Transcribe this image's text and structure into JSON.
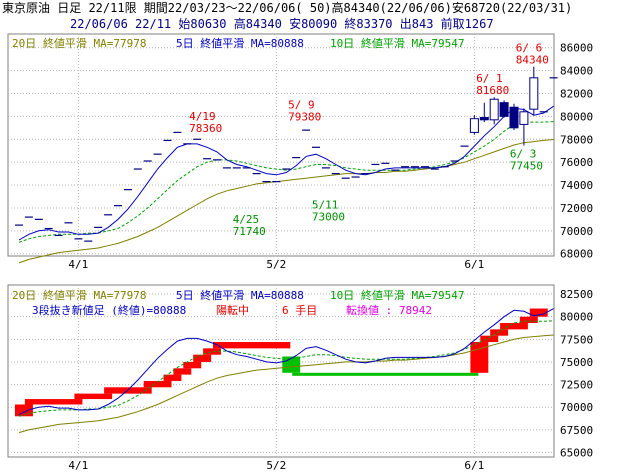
{
  "header": {
    "title": "東京原油 日足 22/11限 期間22/03/23～22/06/06( 50)高84340(22/06/06)安68720(22/03/31)",
    "ohlc": "22/06/06 22/11 始80630 高84340 安80090 終83370 出843 前取1267"
  },
  "colors": {
    "bg": "#ffffff",
    "grid": "#b4b4b4",
    "ma20": "#808000",
    "ma5": "#0000c0",
    "ma10": "#00a000",
    "up": "#ff0000",
    "down": "#00c000",
    "red_label": "#e00000",
    "green_label": "#009000"
  },
  "top_legend": {
    "ma20": "20日 終値平滑 MA=77978",
    "ma5": "5日 終値平滑 MA=80888",
    "ma10": "10日 終値平滑 MA=79547"
  },
  "bottom_legend": {
    "ma20": "20日 終値平滑 MA=77978",
    "ma5": "5日 終値平滑 MA=80888",
    "ma10": "10日 終値平滑 MA=79547",
    "kagi_main": "3段抜き新値足 (終値)=80888",
    "kagi_state": "陽転中",
    "kagi_count": "6 手目",
    "kagi_switch": "転換値 : 78942"
  },
  "chart_data": [
    {
      "type": "candlestick",
      "x_tick_labels": [
        "4/1",
        "5/2",
        "6/1"
      ],
      "x_tick_index": [
        6,
        26,
        46
      ],
      "ylim": [
        67800,
        87200
      ],
      "y_ticks": [
        68000,
        70000,
        72000,
        74000,
        76000,
        78000,
        80000,
        82000,
        84000,
        86000
      ],
      "y_tick_labels": [
        "68000",
        "70000",
        "72000",
        "74000",
        "76000",
        "78000",
        "80000",
        "82000",
        "84000",
        "86000"
      ],
      "grid": true,
      "legend_position": "top-left",
      "close": [
        70500,
        71200,
        71000,
        70200,
        69600,
        70700,
        69300,
        69100,
        70300,
        71400,
        72200,
        73600,
        75400,
        76100,
        76700,
        77900,
        78600,
        77600,
        78000,
        76300,
        76200,
        75500,
        75500,
        75500,
        75000,
        74300,
        74300,
        75400,
        76400,
        78800,
        77300,
        75500,
        75000,
        74600,
        74700,
        75000,
        75800,
        75900,
        75300,
        75600,
        75600,
        75600,
        75400,
        75600,
        76100,
        77400,
        78800,
        79600,
        80200,
        81100,
        82000,
        80200,
        78900,
        80400,
        83370
      ],
      "candles": [
        {
          "i": 46,
          "o": 78600,
          "h": 80100,
          "l": 78400,
          "c": 79800
        },
        {
          "i": 47,
          "o": 79900,
          "h": 81200,
          "l": 79500,
          "c": 79700
        },
        {
          "i": 48,
          "o": 79700,
          "h": 81680,
          "l": 79300,
          "c": 81500
        },
        {
          "i": 49,
          "o": 81200,
          "h": 81400,
          "l": 79900,
          "c": 80000
        },
        {
          "i": 50,
          "o": 80800,
          "h": 81100,
          "l": 78800,
          "c": 79000
        },
        {
          "i": 51,
          "o": 79300,
          "h": 80700,
          "l": 77450,
          "c": 80400
        },
        {
          "i": 52,
          "o": 80630,
          "h": 84340,
          "l": 80090,
          "c": 83370
        }
      ],
      "ma5": [
        69200,
        69700,
        70000,
        70100,
        69900,
        69900,
        69700,
        69700,
        69800,
        70300,
        71000,
        71900,
        73000,
        74200,
        75400,
        76400,
        77300,
        77600,
        77600,
        77300,
        76900,
        76200,
        75800,
        75600,
        75300,
        75000,
        74900,
        75100,
        75700,
        76500,
        76700,
        76300,
        75800,
        75300,
        75000,
        74900,
        75100,
        75400,
        75500,
        75500,
        75500,
        75500,
        75500,
        75600,
        75900,
        76500,
        77400,
        78300,
        79100,
        80000,
        80700,
        80600,
        80100,
        80300,
        80888
      ],
      "ma10": [
        69000,
        69300,
        69500,
        69600,
        69700,
        69700,
        69700,
        69800,
        69800,
        70000,
        70200,
        70700,
        71300,
        72000,
        72800,
        73600,
        74400,
        75000,
        75600,
        76000,
        76200,
        76200,
        76100,
        75900,
        75700,
        75500,
        75400,
        75300,
        75400,
        75600,
        75800,
        75800,
        75700,
        75500,
        75400,
        75300,
        75300,
        75300,
        75300,
        75300,
        75400,
        75500,
        75600,
        75800,
        76000,
        76400,
        76900,
        77400,
        78000,
        78700,
        79300,
        79500,
        79500,
        79500,
        79547
      ],
      "ma20": [
        67200,
        67500,
        67700,
        67900,
        68100,
        68200,
        68300,
        68400,
        68500,
        68700,
        68900,
        69200,
        69500,
        69900,
        70300,
        70800,
        71300,
        71800,
        72300,
        72800,
        73200,
        73500,
        73700,
        73900,
        74100,
        74200,
        74300,
        74400,
        74500,
        74600,
        74700,
        74800,
        74900,
        75000,
        75000,
        75000,
        75100,
        75100,
        75200,
        75200,
        75300,
        75400,
        75500,
        75600,
        75800,
        76000,
        76300,
        76600,
        76900,
        77200,
        77500,
        77700,
        77800,
        77900,
        77978
      ],
      "annotations": [
        {
          "text": "4/19",
          "value": "78360",
          "i": 19,
          "y": 78360,
          "color": "red"
        },
        {
          "text": "5/ 9",
          "value": "79380",
          "i": 29,
          "y": 79380,
          "color": "red"
        },
        {
          "text": "6/ 1",
          "value": "81680",
          "i": 48,
          "y": 81680,
          "color": "red"
        },
        {
          "text": "6/ 6",
          "value": "84340",
          "i": 52,
          "y": 84340,
          "color": "red"
        },
        {
          "text": "4/25",
          "value": "71740",
          "i": 23,
          "y": 71740,
          "color": "green"
        },
        {
          "text": "5/11",
          "value": "73000",
          "i": 31,
          "y": 73000,
          "color": "green"
        },
        {
          "text": "6/ 3",
          "value": "77450",
          "i": 51,
          "y": 77450,
          "color": "green"
        }
      ]
    },
    {
      "type": "line",
      "x_tick_labels": [
        "4/1",
        "5/2",
        "6/1"
      ],
      "x_tick_index": [
        6,
        26,
        46
      ],
      "ylim": [
        64500,
        83500
      ],
      "y_ticks": [
        65000,
        67500,
        70000,
        72500,
        75000,
        77500,
        80000,
        82500
      ],
      "y_tick_labels": [
        "65000",
        "67500",
        "70000",
        "72500",
        "75000",
        "77500",
        "80000",
        "82500"
      ],
      "grid": true,
      "legend_position": "top-left",
      "kagi_blocks": [
        {
          "i0": 0,
          "i1": 1,
          "lo": 69000,
          "hi": 70300,
          "dir": "up"
        },
        {
          "i0": 1,
          "i1": 6,
          "lo": 70300,
          "hi": 70900,
          "dir": "up"
        },
        {
          "i0": 6,
          "i1": 9,
          "lo": 70900,
          "hi": 71500,
          "dir": "up"
        },
        {
          "i0": 9,
          "i1": 13,
          "lo": 71500,
          "hi": 72200,
          "dir": "up"
        },
        {
          "i0": 13,
          "i1": 15,
          "lo": 72200,
          "hi": 72900,
          "dir": "up"
        },
        {
          "i0": 15,
          "i1": 16,
          "lo": 72900,
          "hi": 73600,
          "dir": "up"
        },
        {
          "i0": 16,
          "i1": 17,
          "lo": 73600,
          "hi": 74300,
          "dir": "up"
        },
        {
          "i0": 17,
          "i1": 18,
          "lo": 74300,
          "hi": 75000,
          "dir": "up"
        },
        {
          "i0": 18,
          "i1": 19,
          "lo": 75000,
          "hi": 75800,
          "dir": "up"
        },
        {
          "i0": 19,
          "i1": 20,
          "lo": 75800,
          "hi": 76500,
          "dir": "up"
        },
        {
          "i0": 20,
          "i1": 27,
          "lo": 76500,
          "hi": 77200,
          "dir": "up"
        },
        {
          "i0": 27,
          "i1": 28,
          "lo": 73800,
          "hi": 75600,
          "dir": "down"
        },
        {
          "i0": 28,
          "i1": 46,
          "lo": 73500,
          "hi": 73800,
          "dir": "down"
        },
        {
          "i0": 46,
          "i1": 47,
          "lo": 73800,
          "hi": 77200,
          "dir": "up"
        },
        {
          "i0": 47,
          "i1": 48,
          "lo": 77200,
          "hi": 77900,
          "dir": "up"
        },
        {
          "i0": 48,
          "i1": 49,
          "lo": 77900,
          "hi": 78600,
          "dir": "up"
        },
        {
          "i0": 49,
          "i1": 51,
          "lo": 78600,
          "hi": 79300,
          "dir": "up"
        },
        {
          "i0": 51,
          "i1": 52,
          "lo": 79300,
          "hi": 80000,
          "dir": "up"
        },
        {
          "i0": 52,
          "i1": 53,
          "lo": 80000,
          "hi": 80900,
          "dir": "up"
        }
      ]
    }
  ]
}
